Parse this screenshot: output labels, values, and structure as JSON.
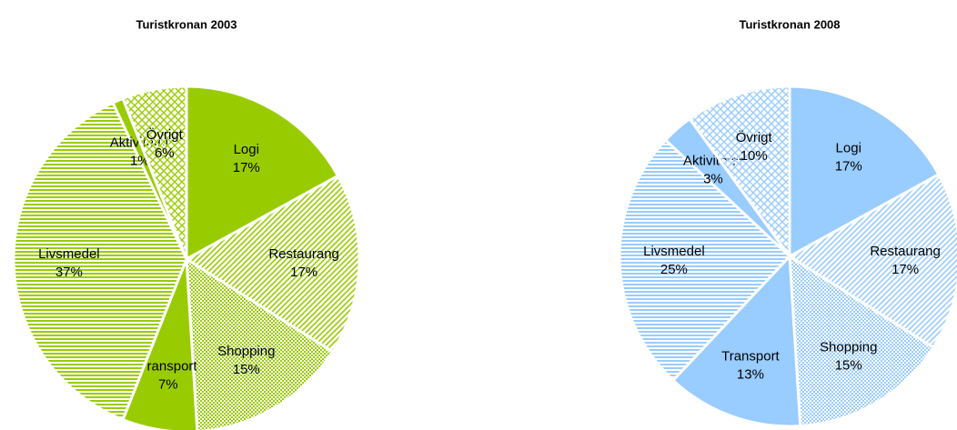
{
  "chart_data": [
    {
      "type": "pie",
      "title": "Turistkronan 2003",
      "color": "#99cc00",
      "categories": [
        "Logi",
        "Restaurang",
        "Shopping",
        "Transport",
        "Livsmedel",
        "Aktiviteter",
        "Övrigt"
      ],
      "values": [
        17,
        17,
        15,
        7,
        37,
        1,
        6
      ],
      "value_labels": [
        "17%",
        "17%",
        "15%",
        "7%",
        "37%",
        "1%",
        "6%"
      ]
    },
    {
      "type": "pie",
      "title": "Turistkronan 2008",
      "color": "#99ccff",
      "categories": [
        "Logi",
        "Restaurang",
        "Shopping",
        "Transport",
        "Livsmedel",
        "Aktiviteter",
        "Övrigt"
      ],
      "values": [
        17,
        17,
        15,
        13,
        25,
        3,
        10
      ],
      "value_labels": [
        "17%",
        "17%",
        "15%",
        "13%",
        "25%",
        "3%",
        "10%"
      ]
    }
  ]
}
